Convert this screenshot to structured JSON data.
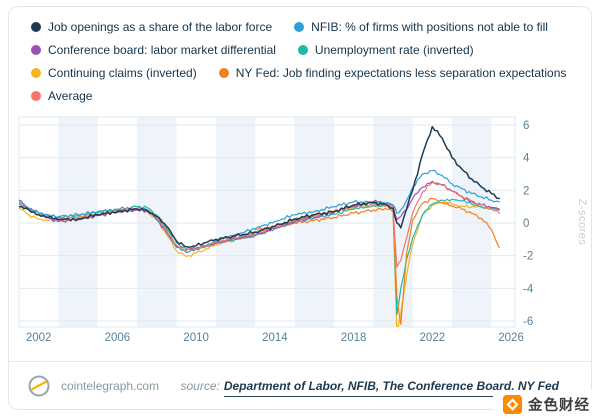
{
  "chart_data": {
    "type": "line",
    "title": "",
    "ylabel": "Z-scores",
    "legend_position": "top",
    "grid": true,
    "xlim": [
      2001,
      2026.2
    ],
    "ylim": [
      -6,
      6
    ],
    "yticks": [
      6,
      4,
      2,
      0,
      -2,
      -4,
      -6
    ],
    "xticks": [
      2002,
      2006,
      2010,
      2014,
      2018,
      2022,
      2026
    ],
    "band_color": "#eef4f9",
    "x": [
      2001,
      2001.5,
      2002,
      2002.5,
      2003,
      2004,
      2005,
      2006,
      2007,
      2007.5,
      2008,
      2008.5,
      2009,
      2009.5,
      2010,
      2010.5,
      2011,
      2012,
      2013,
      2014,
      2015,
      2016,
      2017,
      2018,
      2019,
      2019.7,
      2020.0,
      2020.2,
      2020.4,
      2020.7,
      2021,
      2021.5,
      2022,
      2022.5,
      2023,
      2023.5,
      2024,
      2024.5,
      2025,
      2025.4
    ],
    "series": [
      {
        "name": "Job openings as a share of the labor force",
        "color": "#203a4f",
        "values": [
          1.0,
          0.8,
          0.5,
          0.35,
          0.2,
          0.25,
          0.5,
          0.7,
          0.85,
          0.8,
          0.4,
          -0.2,
          -1.1,
          -1.45,
          -1.4,
          -1.2,
          -1.0,
          -0.8,
          -0.55,
          -0.2,
          0.25,
          0.5,
          0.7,
          1.1,
          1.25,
          1.1,
          0.9,
          0.0,
          -0.3,
          0.9,
          2.0,
          4.2,
          5.9,
          5.2,
          4.0,
          3.3,
          2.7,
          2.2,
          1.8,
          1.5
        ]
      },
      {
        "name": "NFIB: % of firms with positions not able to fill",
        "color": "#2e9fd4",
        "values": [
          1.3,
          0.9,
          0.6,
          0.5,
          0.4,
          0.5,
          0.7,
          0.8,
          0.9,
          0.8,
          0.3,
          -0.5,
          -1.5,
          -1.8,
          -1.6,
          -1.4,
          -1.1,
          -0.7,
          -0.35,
          0.1,
          0.5,
          0.7,
          1.0,
          1.3,
          1.25,
          1.2,
          1.1,
          0.6,
          0.8,
          1.4,
          2.2,
          3.0,
          3.2,
          2.9,
          2.4,
          2.1,
          1.8,
          1.6,
          1.4,
          1.3
        ]
      },
      {
        "name": "Conference board: labor market differential",
        "color": "#9b51b5",
        "values": [
          1.4,
          0.9,
          0.5,
          0.3,
          0.1,
          0.2,
          0.45,
          0.65,
          0.8,
          0.75,
          0.2,
          -0.6,
          -1.4,
          -1.65,
          -1.55,
          -1.4,
          -1.2,
          -1.0,
          -0.75,
          -0.35,
          0.1,
          0.35,
          0.65,
          1.05,
          1.3,
          1.25,
          1.1,
          0.2,
          0.4,
          0.8,
          1.5,
          2.2,
          2.55,
          2.35,
          1.95,
          1.6,
          1.3,
          1.1,
          0.95,
          0.85
        ]
      },
      {
        "name": "Unemployment rate (inverted)",
        "color": "#1db8a7",
        "values": [
          1.2,
          0.9,
          0.6,
          0.45,
          0.35,
          0.45,
          0.65,
          0.85,
          1.0,
          0.95,
          0.5,
          -0.3,
          -1.2,
          -1.6,
          -1.6,
          -1.45,
          -1.25,
          -1.0,
          -0.75,
          -0.35,
          0.05,
          0.3,
          0.55,
          0.85,
          1.05,
          1.1,
          0.9,
          -5.6,
          -4.0,
          -2.2,
          -0.9,
          0.5,
          1.15,
          1.4,
          1.45,
          1.35,
          1.15,
          1.0,
          0.9,
          0.8
        ]
      },
      {
        "name": "Continuing claims (inverted)",
        "color": "#f6b51e",
        "values": [
          0.9,
          0.5,
          0.25,
          0.15,
          0.1,
          0.35,
          0.55,
          0.75,
          0.85,
          0.7,
          0.2,
          -0.7,
          -1.7,
          -2.05,
          -1.85,
          -1.6,
          -1.3,
          -1.0,
          -0.7,
          -0.3,
          0.15,
          0.45,
          0.7,
          0.95,
          1.05,
          1.05,
          0.9,
          -6.8,
          -5.5,
          -3.2,
          -1.3,
          0.5,
          1.1,
          1.25,
          1.15,
          1.05,
          1.0,
          0.95,
          0.9,
          0.85
        ]
      },
      {
        "name": "NY Fed: Job finding expectations less separation expectations",
        "color": "#f28021",
        "values": [
          null,
          null,
          null,
          null,
          null,
          null,
          null,
          null,
          null,
          null,
          null,
          null,
          null,
          null,
          null,
          null,
          null,
          null,
          -0.4,
          -0.25,
          0.0,
          0.15,
          0.35,
          0.6,
          0.8,
          0.85,
          0.7,
          -4.5,
          -6.2,
          -1.8,
          0.2,
          1.2,
          1.5,
          1.25,
          1.05,
          0.85,
          0.6,
          0.3,
          -0.4,
          -1.5
        ]
      },
      {
        "name": "Average",
        "color": "#f4756b",
        "values": [
          1.15,
          0.85,
          0.5,
          0.35,
          0.25,
          0.35,
          0.55,
          0.75,
          0.9,
          0.8,
          0.3,
          -0.45,
          -1.35,
          -1.7,
          -1.6,
          -1.4,
          -1.15,
          -0.9,
          -0.6,
          -0.25,
          0.2,
          0.45,
          0.7,
          1.0,
          1.15,
          1.1,
          0.95,
          -2.7,
          -2.3,
          -0.9,
          0.6,
          1.9,
          2.5,
          2.3,
          1.95,
          1.65,
          1.35,
          1.1,
          0.85,
          0.6
        ]
      }
    ]
  },
  "footer": {
    "site": "cointelegraph.com",
    "source_prefix": "source:",
    "source_text": "Department of Labor, NFIB, The Conference Board, NY Fed"
  },
  "watermark": {
    "text": "金色财经"
  }
}
